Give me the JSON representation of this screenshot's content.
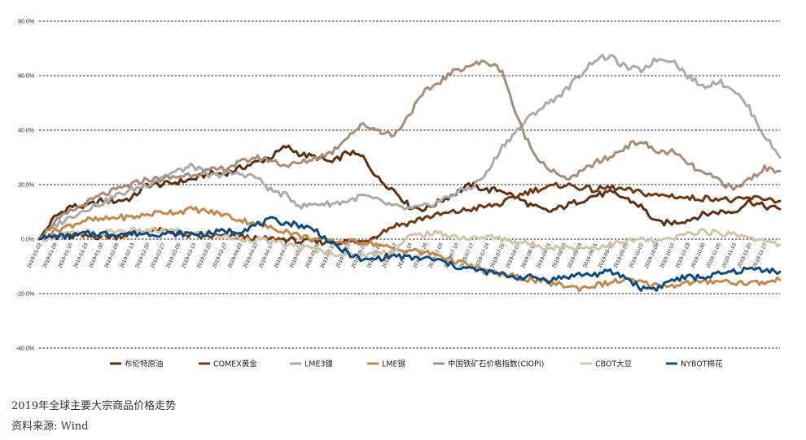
{
  "caption": {
    "title": "2019年全球主要大宗商品价格走势",
    "source": "资料来源: Wind"
  },
  "chart_data": {
    "type": "line",
    "title": "",
    "xlabel": "",
    "ylabel": "",
    "ylim": [
      -40,
      80
    ],
    "yticks": [
      {
        "value": 80,
        "label": "80.0%"
      },
      {
        "value": 60,
        "label": "60.0%"
      },
      {
        "value": 40,
        "label": "40.0%"
      },
      {
        "value": 20,
        "label": "20.0%"
      },
      {
        "value": 0,
        "label": "0.0%"
      },
      {
        "value": -20,
        "label": "-20.0%"
      },
      {
        "value": -40,
        "label": "-40.0%"
      }
    ],
    "grid": "horizontal-dashed",
    "legend": "bottom",
    "x": [
      "2019-01-02",
      "2019-01-09",
      "2019-01-16",
      "2019-01-23",
      "2019-01-30",
      "2019-02-06",
      "2019-02-13",
      "2019-02-20",
      "2019-02-27",
      "2019-03-06",
      "2019-03-13",
      "2019-03-20",
      "2019-03-27",
      "2019-04-03",
      "2019-04-10",
      "2019-04-17",
      "2019-04-24",
      "2019-05-01",
      "2019-05-08",
      "2019-05-15",
      "2019-05-22",
      "2019-05-29",
      "2019-06-05",
      "2019-06-12",
      "2019-06-19",
      "2019-06-26",
      "2019-07-03",
      "2019-07-10",
      "2019-07-17",
      "2019-07-24",
      "2019-07-31",
      "2019-08-07",
      "2019-08-14",
      "2019-08-21",
      "2019-08-28",
      "2019-09-04",
      "2019-09-11",
      "2019-09-18",
      "2019-09-25",
      "2019-10-02",
      "2019-10-09",
      "2019-10-16",
      "2019-10-23",
      "2019-10-30",
      "2019-11-06",
      "2019-11-13",
      "2019-11-20",
      "2019-11-27",
      "2019-12-04"
    ],
    "xtick_labels": [
      "2019-01-02",
      "2019-01-09",
      "2019-01-16",
      "2019-01-23",
      "2019-01-30",
      "2019-02-06",
      "2019-02-13",
      "2019-02-20",
      "2019-02-27",
      "2019-03-06",
      "2019-03-13",
      "2019-03-20",
      "2019-03-27",
      "2019-04-03",
      "2019-04-10",
      "2019-04-17",
      "2019-04-24",
      "2019-05-01",
      "2019-05-08",
      "2019-05-15",
      "2019-05-22",
      "2019-05-29",
      "2019-06-05",
      "2019-06-12",
      "2019-06-19",
      "2019-06-26",
      "2019-07-03",
      "2019-07-10",
      "2019-07-17",
      "2019-07-24",
      "2019-07-31",
      "2019-08-07",
      "2019-08-14",
      "2019-08-21",
      "2019-08-28",
      "2019-09-04",
      "2019-09-11",
      "2019-09-18",
      "2019-09-25",
      "2019-10-02",
      "2019-10-09",
      "2019-10-16",
      "2019-10-23",
      "2019-10-30",
      "2019-11-06",
      "2019-11-13",
      "2019-11-20",
      "2019-11-27"
    ],
    "series": [
      {
        "name": "布伦特原油",
        "color": "#5a2f12",
        "values": [
          0,
          8,
          12,
          12,
          14,
          14,
          15,
          20,
          20,
          21,
          22,
          24,
          24,
          26,
          28,
          30,
          34,
          31,
          30,
          28,
          32,
          30,
          22,
          18,
          12,
          11,
          14,
          17,
          20,
          18,
          18,
          15,
          12,
          10,
          12,
          14,
          16,
          17,
          15,
          12,
          6,
          6,
          7,
          9,
          10,
          10,
          14,
          12,
          11
        ]
      },
      {
        "name": "COMEX黄金",
        "color": "#6b3a14",
        "values": [
          0,
          1,
          1,
          1,
          1,
          1,
          2,
          3,
          3,
          2,
          1,
          1,
          1,
          1,
          0,
          0,
          0,
          -1,
          -1,
          -1,
          -1,
          -1,
          2,
          5,
          6,
          8,
          9,
          10,
          11,
          12,
          13,
          16,
          18,
          19,
          20,
          19,
          18,
          19,
          18,
          17,
          16,
          16,
          15,
          15,
          15,
          14,
          15,
          15,
          14
        ]
      },
      {
        "name": "LME3镍",
        "color": "#aaaaaa",
        "values": [
          0,
          5,
          8,
          11,
          13,
          16,
          18,
          20,
          23,
          25,
          27,
          23,
          24,
          24,
          23,
          18,
          16,
          12,
          13,
          13,
          14,
          16,
          14,
          12,
          11,
          12,
          14,
          17,
          19,
          24,
          34,
          40,
          46,
          50,
          54,
          60,
          66,
          67,
          63,
          62,
          66,
          66,
          60,
          56,
          58,
          55,
          48,
          38,
          30
        ]
      },
      {
        "name": "LME锡",
        "color": "#c08a4e",
        "values": [
          0,
          3,
          5,
          7,
          7,
          8,
          8,
          9,
          10,
          10,
          11,
          10,
          9,
          7,
          6,
          4,
          3,
          1,
          0,
          -1,
          -1,
          -1,
          -2,
          -4,
          -4,
          -5,
          -6,
          -8,
          -10,
          -12,
          -13,
          -14,
          -15,
          -16,
          -17,
          -18,
          -17,
          -16,
          -15,
          -16,
          -17,
          -17,
          -16,
          -16,
          -15,
          -16,
          -16,
          -16,
          -15
        ]
      },
      {
        "name": "中国铁矿石价格指数(CIOPI)",
        "color": "#a88c7a",
        "values": [
          0,
          6,
          10,
          13,
          16,
          18,
          20,
          22,
          22,
          23,
          24,
          25,
          26,
          28,
          30,
          29,
          27,
          28,
          30,
          32,
          38,
          42,
          40,
          38,
          46,
          54,
          58,
          62,
          64,
          65,
          62,
          44,
          32,
          26,
          22,
          24,
          28,
          30,
          34,
          36,
          32,
          32,
          28,
          24,
          22,
          18,
          22,
          26,
          25
        ]
      },
      {
        "name": "CBOT大豆",
        "color": "#d2c4ab",
        "values": [
          0,
          1,
          2,
          2,
          2,
          3,
          3,
          3,
          3,
          3,
          2,
          2,
          1,
          0,
          0,
          -1,
          -2,
          -3,
          -4,
          -5,
          -6,
          -6,
          -5,
          -4,
          1,
          2,
          2,
          1,
          0,
          1,
          0,
          -1,
          -2,
          -3,
          -3,
          -3,
          -3,
          -2,
          -1,
          0,
          -1,
          0,
          2,
          3,
          2,
          2,
          1,
          -1,
          -2
        ]
      },
      {
        "name": "NYBOT棉花",
        "color": "#0d4a80",
        "values": [
          0,
          1,
          1,
          2,
          2,
          2,
          2,
          2,
          2,
          2,
          2,
          2,
          3,
          3,
          5,
          7,
          6,
          5,
          3,
          -2,
          -5,
          -8,
          -7,
          -6,
          -7,
          -7,
          -8,
          -10,
          -11,
          -12,
          -13,
          -14,
          -14,
          -15,
          -14,
          -13,
          -13,
          -12,
          -14,
          -18,
          -18,
          -15,
          -14,
          -14,
          -13,
          -12,
          -11,
          -11,
          -12
        ]
      }
    ]
  }
}
